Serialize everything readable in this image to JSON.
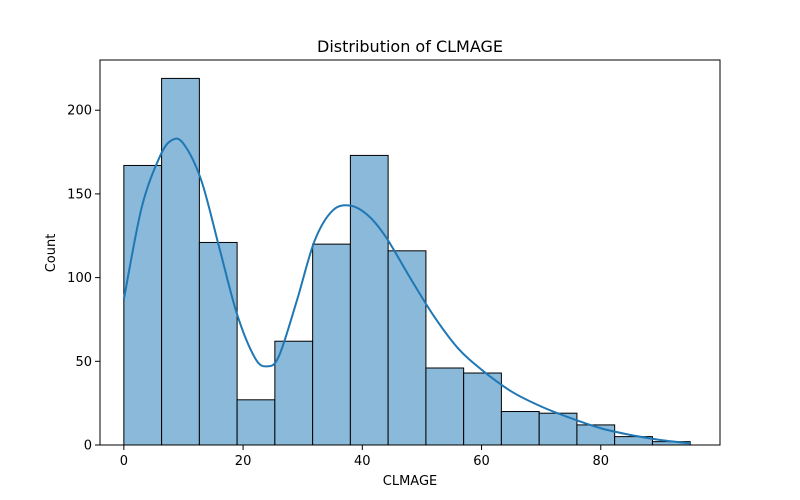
{
  "chart_data": {
    "type": "bar",
    "title": "Distribution of CLMAGE",
    "xlabel": "CLMAGE",
    "ylabel": "Count",
    "bin_edges": [
      0,
      6.33,
      12.67,
      19,
      25.33,
      31.67,
      38,
      44.33,
      50.67,
      57,
      63.33,
      69.67,
      76,
      82.33,
      88.67,
      95
    ],
    "values": [
      167,
      219,
      121,
      27,
      62,
      120,
      173,
      116,
      46,
      43,
      20,
      19,
      12,
      5,
      2
    ],
    "kde": {
      "x": [
        0,
        3,
        6,
        8,
        10,
        13,
        16,
        19,
        22,
        24,
        26,
        29,
        32,
        35,
        38,
        41,
        44,
        48,
        52,
        56,
        60,
        65,
        70,
        75,
        80,
        85,
        90,
        95
      ],
      "y": [
        87,
        142,
        172,
        182,
        180,
        158,
        118,
        78,
        52,
        47,
        53,
        86,
        122,
        140,
        143,
        137,
        124,
        100,
        77,
        58,
        45,
        32,
        23,
        16,
        10,
        6,
        3,
        1
      ]
    },
    "xlim": [
      -4,
      100
    ],
    "ylim": [
      0,
      230
    ],
    "xticks": [
      0,
      20,
      40,
      60,
      80
    ],
    "yticks": [
      0,
      50,
      100,
      150,
      200
    ],
    "grid": false,
    "colors": {
      "bar_fill": "#8ab9da",
      "bar_edge": "#000000",
      "kde_line": "#1f77b4"
    }
  }
}
